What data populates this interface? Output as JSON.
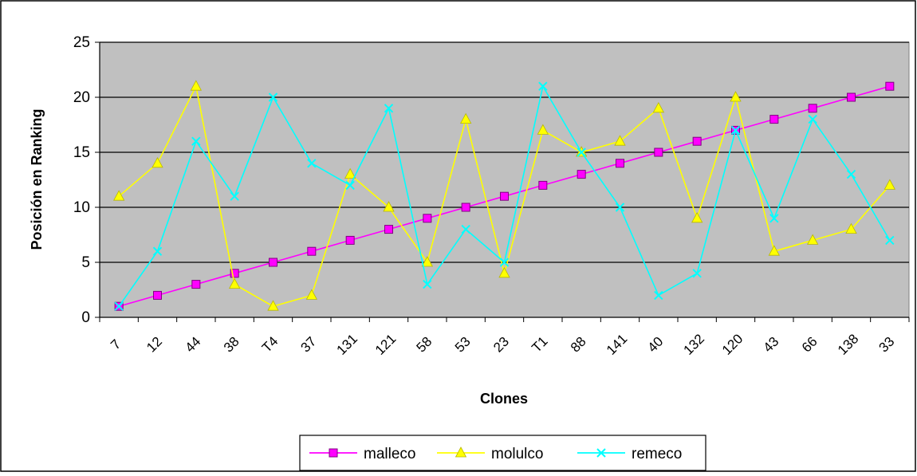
{
  "chart_data": {
    "type": "line",
    "title": "",
    "xlabel": "Clones",
    "ylabel": "Posición en Ranking",
    "ylim": [
      0,
      25
    ],
    "yticks": [
      0,
      5,
      10,
      15,
      20,
      25
    ],
    "grid": true,
    "legend_position": "bottom",
    "categories": [
      "7",
      "12",
      "44",
      "38",
      "T4",
      "37",
      "131",
      "121",
      "58",
      "53",
      "23",
      "T1",
      "88",
      "141",
      "40",
      "132",
      "120",
      "43",
      "66",
      "138",
      "33"
    ],
    "series": [
      {
        "name": "malleco",
        "color": "#ff00ff",
        "marker": "square",
        "values": [
          1,
          2,
          3,
          4,
          5,
          6,
          7,
          8,
          9,
          10,
          11,
          12,
          13,
          14,
          15,
          16,
          17,
          18,
          19,
          20,
          21
        ]
      },
      {
        "name": "molulco",
        "color": "#ffff00",
        "marker": "triangle",
        "values": [
          11,
          14,
          21,
          3,
          1,
          2,
          13,
          10,
          5,
          18,
          4,
          17,
          15,
          16,
          19,
          9,
          20,
          6,
          7,
          8,
          12
        ]
      },
      {
        "name": "remeco",
        "color": "#00ffff",
        "marker": "x",
        "values": [
          1,
          6,
          16,
          11,
          20,
          14,
          12,
          19,
          3,
          8,
          5,
          21,
          15,
          10,
          2,
          4,
          17,
          9,
          18,
          13,
          7
        ]
      }
    ],
    "plot_background": "#c0c0c0"
  }
}
